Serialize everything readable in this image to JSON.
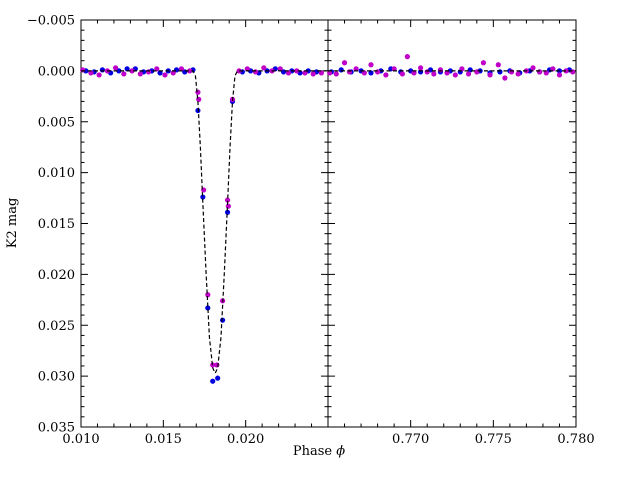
{
  "chart_data": {
    "type": "scatter",
    "ylabel": "K2 mag",
    "xlabel": "Phase",
    "xlabel_symbol": "ϕ",
    "y_inverted": true,
    "ylim": [
      0.035,
      -0.005
    ],
    "y_ticks": [
      -0.005,
      0.0,
      0.005,
      0.01,
      0.015,
      0.02,
      0.025,
      0.03,
      0.035
    ],
    "y_tick_labels": [
      "−0.005",
      "0.000",
      "0.005",
      "0.010",
      "0.015",
      "0.020",
      "0.025",
      "0.030",
      "0.035"
    ],
    "colors": {
      "series_a": "#0000e0",
      "series_b": "#c000c8",
      "model": "#000000"
    },
    "panels": [
      {
        "xlim": [
          0.01,
          0.025
        ],
        "x_ticks": [
          0.01,
          0.015,
          0.02
        ],
        "x_tick_labels": [
          "0.010",
          "0.015",
          "0.020"
        ],
        "series": [
          {
            "color_key": "series_a",
            "points": [
              [
                0.0103,
                0.0
              ],
              [
                0.0108,
                0.0001
              ],
              [
                0.0113,
                -0.0001
              ],
              [
                0.0118,
                0.0002
              ],
              [
                0.0123,
                0.0
              ],
              [
                0.0128,
                -0.0002
              ],
              [
                0.0133,
                -0.0002
              ],
              [
                0.0138,
                0.0001
              ],
              [
                0.0143,
                0.0
              ],
              [
                0.0148,
                0.0002
              ],
              [
                0.0153,
                0.0
              ],
              [
                0.0158,
                -0.0001
              ],
              [
                0.0163,
                0.0001
              ],
              [
                0.0168,
                -0.0001
              ],
              [
                0.0171,
                0.0039
              ],
              [
                0.0174,
                0.0124
              ],
              [
                0.0177,
                0.0233
              ],
              [
                0.018,
                0.0305
              ],
              [
                0.0183,
                0.0302
              ],
              [
                0.0186,
                0.0245
              ],
              [
                0.0189,
                0.0139
              ],
              [
                0.0192,
                0.003
              ],
              [
                0.0198,
                0.0001
              ],
              [
                0.0203,
                0.0
              ],
              [
                0.0208,
                0.0002
              ],
              [
                0.0213,
                0.0
              ],
              [
                0.0218,
                -0.0002
              ],
              [
                0.0223,
                0.0001
              ],
              [
                0.0228,
                0.0
              ],
              [
                0.0233,
                0.0002
              ],
              [
                0.0238,
                0.0
              ],
              [
                0.0243,
                0.0001
              ]
            ]
          },
          {
            "color_key": "series_b",
            "points": [
              [
                0.0101,
                -0.0001
              ],
              [
                0.0106,
                0.0002
              ],
              [
                0.0111,
                0.0004
              ],
              [
                0.0116,
                0.0
              ],
              [
                0.0121,
                -0.0003
              ],
              [
                0.0126,
                0.0003
              ],
              [
                0.0131,
                0.0
              ],
              [
                0.0136,
                0.0003
              ],
              [
                0.0141,
                0.0001
              ],
              [
                0.0146,
                -0.0002
              ],
              [
                0.0151,
                0.0004
              ],
              [
                0.0156,
                0.0002
              ],
              [
                0.0161,
                -0.0002
              ],
              [
                0.0166,
                0.0
              ],
              [
                0.0171,
                0.0021
              ],
              [
                0.01715,
                0.0028
              ],
              [
                0.01745,
                0.0117
              ],
              [
                0.0177,
                0.022
              ],
              [
                0.018,
                0.0289
              ],
              [
                0.01825,
                0.0289
              ],
              [
                0.0186,
                0.0226
              ],
              [
                0.0189,
                0.0127
              ],
              [
                0.01895,
                0.0133
              ],
              [
                0.0192,
                0.0028
              ],
              [
                0.0196,
                0.0
              ],
              [
                0.0201,
                -0.0002
              ],
              [
                0.0206,
                0.0001
              ],
              [
                0.0211,
                -0.0003
              ],
              [
                0.0216,
                0.0
              ],
              [
                0.0221,
                -0.0002
              ],
              [
                0.0226,
                0.0002
              ],
              [
                0.0231,
                0.0
              ],
              [
                0.0236,
                0.0002
              ],
              [
                0.0241,
                0.0003
              ],
              [
                0.0246,
                0.0002
              ]
            ]
          }
        ],
        "model": [
          [
            0.01,
            0.0
          ],
          [
            0.0168,
            0.0
          ],
          [
            0.01695,
            0.0005
          ],
          [
            0.0171,
            0.003
          ],
          [
            0.01725,
            0.0075
          ],
          [
            0.0174,
            0.013
          ],
          [
            0.0176,
            0.02
          ],
          [
            0.0178,
            0.0262
          ],
          [
            0.018,
            0.0292
          ],
          [
            0.01815,
            0.0297
          ],
          [
            0.0183,
            0.0292
          ],
          [
            0.0185,
            0.0262
          ],
          [
            0.0187,
            0.02
          ],
          [
            0.0189,
            0.013
          ],
          [
            0.01905,
            0.0075
          ],
          [
            0.0192,
            0.003
          ],
          [
            0.01935,
            0.0005
          ],
          [
            0.0195,
            0.0
          ],
          [
            0.025,
            0.0
          ]
        ]
      },
      {
        "xlim": [
          0.765,
          0.78
        ],
        "x_ticks": [
          0.77,
          0.775,
          0.78
        ],
        "x_tick_labels": [
          "0.770",
          "0.775",
          "0.780"
        ],
        "series": [
          {
            "color_key": "series_a",
            "points": [
              [
                0.7652,
                0.0001
              ],
              [
                0.7658,
                -0.0001
              ],
              [
                0.7664,
                0.0001
              ],
              [
                0.767,
                0.0
              ],
              [
                0.7676,
                0.0002
              ],
              [
                0.7682,
                0.0
              ],
              [
                0.7688,
                -0.0002
              ],
              [
                0.7694,
                0.0001
              ],
              [
                0.77,
                0.0
              ],
              [
                0.7706,
                0.0001
              ],
              [
                0.7712,
                -0.0001
              ],
              [
                0.7718,
                0.0001
              ],
              [
                0.7724,
                0.0
              ],
              [
                0.773,
                0.0001
              ],
              [
                0.7736,
                -0.0001
              ],
              [
                0.7742,
                0.0
              ],
              [
                0.7748,
                0.0002
              ],
              [
                0.7754,
                0.0001
              ],
              [
                0.776,
                0.0
              ],
              [
                0.7766,
                0.0002
              ],
              [
                0.7772,
                0.0
              ],
              [
                0.7778,
                0.0001
              ],
              [
                0.7784,
                -0.0001
              ],
              [
                0.779,
                0.0
              ],
              [
                0.7796,
                -0.0001
              ]
            ]
          },
          {
            "color_key": "series_b",
            "points": [
              [
                0.7651,
                0.0002
              ],
              [
                0.7655,
                0.0003
              ],
              [
                0.766,
                -0.0008
              ],
              [
                0.7663,
                0.0001
              ],
              [
                0.7667,
                -0.0002
              ],
              [
                0.7672,
                0.0002
              ],
              [
                0.7676,
                -0.0006
              ],
              [
                0.768,
                0.0001
              ],
              [
                0.7685,
                0.0004
              ],
              [
                0.769,
                -0.0002
              ],
              [
                0.7695,
                0.0003
              ],
              [
                0.7698,
                -0.0014
              ],
              [
                0.7702,
                0.0002
              ],
              [
                0.7706,
                -0.0003
              ],
              [
                0.771,
                0.0001
              ],
              [
                0.7714,
                0.0003
              ],
              [
                0.7718,
                -0.0001
              ],
              [
                0.7722,
                0.0002
              ],
              [
                0.7727,
                0.0004
              ],
              [
                0.7731,
                -0.0002
              ],
              [
                0.7735,
                0.0003
              ],
              [
                0.774,
                0.0001
              ],
              [
                0.7744,
                -0.0008
              ],
              [
                0.7748,
                0.0004
              ],
              [
                0.7753,
                -0.0006
              ],
              [
                0.7757,
                0.0007
              ],
              [
                0.7761,
                0.0001
              ],
              [
                0.7765,
                0.0003
              ],
              [
                0.777,
                0.0
              ],
              [
                0.7774,
                -0.0003
              ],
              [
                0.7778,
                0.0001
              ],
              [
                0.7782,
                0.0002
              ],
              [
                0.7786,
                -0.0002
              ],
              [
                0.779,
                0.0004
              ],
              [
                0.7794,
                0.0
              ],
              [
                0.7798,
                0.0001
              ]
            ]
          }
        ],
        "model": [
          [
            0.765,
            0.0
          ],
          [
            0.78,
            0.0
          ]
        ]
      }
    ]
  }
}
